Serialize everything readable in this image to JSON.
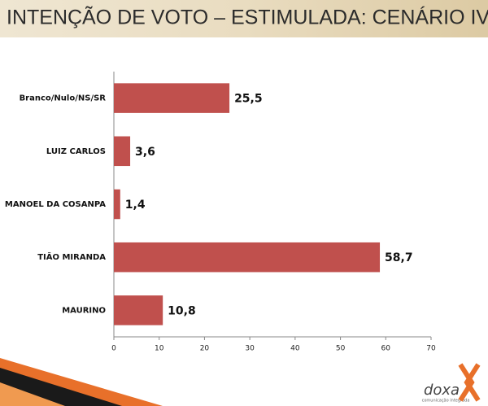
{
  "chart_data": {
    "type": "bar",
    "orientation": "horizontal",
    "title": "INTENÇÃO DE VOTO – ESTIMULADA: CENÁRIO IV",
    "categories": [
      "Branco/Nulo/NS/SR",
      "LUIZ CARLOS",
      "MANOEL DA COSANPA",
      "TIÃO MIRANDA",
      "MAURINO"
    ],
    "values": [
      25.5,
      3.6,
      1.4,
      58.7,
      10.8
    ],
    "value_labels": [
      "25,5",
      "3,6",
      "1,4",
      "58,7",
      "10,8"
    ],
    "color": "#c0504d",
    "xlim": [
      0,
      70
    ],
    "xticks": [
      0,
      10,
      20,
      30,
      40,
      50,
      60,
      70
    ]
  },
  "logo": {
    "name": "doxa",
    "tagline": "comunicação integrada"
  }
}
